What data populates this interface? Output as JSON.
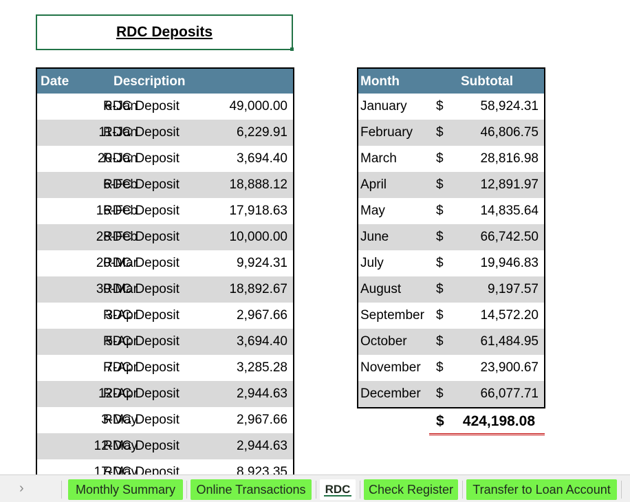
{
  "title": "RDC Deposits",
  "deposits": {
    "headers": {
      "date": "Date",
      "description": "Description"
    },
    "rows": [
      {
        "date": "6-Jan",
        "desc": "RDC Deposit",
        "amount": "49,000.00"
      },
      {
        "date": "11-Jan",
        "desc": "RDC Deposit",
        "amount": "6,229.91"
      },
      {
        "date": "20-Jan",
        "desc": "RDC Deposit",
        "amount": "3,694.40"
      },
      {
        "date": "6-Feb",
        "desc": "RDC Deposit",
        "amount": "18,888.12"
      },
      {
        "date": "16-Feb",
        "desc": "RDC Deposit",
        "amount": "17,918.63"
      },
      {
        "date": "28-Feb",
        "desc": "RDC Deposit",
        "amount": "10,000.00"
      },
      {
        "date": "20-Mar",
        "desc": "RDC Deposit",
        "amount": "9,924.31"
      },
      {
        "date": "30-Mar",
        "desc": "RDC Deposit",
        "amount": "18,892.67"
      },
      {
        "date": "3-Apr",
        "desc": "RDC Deposit",
        "amount": "2,967.66"
      },
      {
        "date": "5-Apr",
        "desc": "RDC Deposit",
        "amount": "3,694.40"
      },
      {
        "date": "7-Apr",
        "desc": "RDC Deposit",
        "amount": "3,285.28"
      },
      {
        "date": "12-Apr",
        "desc": "RDC Deposit",
        "amount": "2,944.63"
      },
      {
        "date": "3-May",
        "desc": "RDC Deposit",
        "amount": "2,967.66"
      },
      {
        "date": "12-May",
        "desc": "RDC Deposit",
        "amount": "2,944.63"
      },
      {
        "date": "17-May",
        "desc": "RDC Deposit",
        "amount": "8,923.35"
      }
    ]
  },
  "monthly": {
    "headers": {
      "month": "Month",
      "subtotal": "Subtotal"
    },
    "currency": "$",
    "rows": [
      {
        "month": "January",
        "subtotal": "58,924.31"
      },
      {
        "month": "February",
        "subtotal": "46,806.75"
      },
      {
        "month": "March",
        "subtotal": "28,816.98"
      },
      {
        "month": "April",
        "subtotal": "12,891.97"
      },
      {
        "month": "May",
        "subtotal": "14,835.64"
      },
      {
        "month": "June",
        "subtotal": "66,742.50"
      },
      {
        "month": "July",
        "subtotal": "19,946.83"
      },
      {
        "month": "August",
        "subtotal": "9,197.57"
      },
      {
        "month": "September",
        "subtotal": "14,572.20"
      },
      {
        "month": "October",
        "subtotal": "61,484.95"
      },
      {
        "month": "November",
        "subtotal": "23,900.67"
      },
      {
        "month": "December",
        "subtotal": "66,077.71"
      }
    ],
    "total": "424,198.08"
  },
  "tabs": {
    "nav_icon": "chevron-right-icon",
    "items": [
      {
        "label": "Monthly Summary",
        "active": false
      },
      {
        "label": "Online Transactions",
        "active": false
      },
      {
        "label": "RDC",
        "active": true
      },
      {
        "label": "Check Register",
        "active": false
      },
      {
        "label": "Transfer to Loan Account",
        "active": false
      }
    ]
  },
  "colors": {
    "header_bg": "#54819b",
    "band_bg": "#d9d9d9",
    "tab_bg": "#77f34a",
    "accent": "#217346",
    "total_underline": "#c00000"
  }
}
